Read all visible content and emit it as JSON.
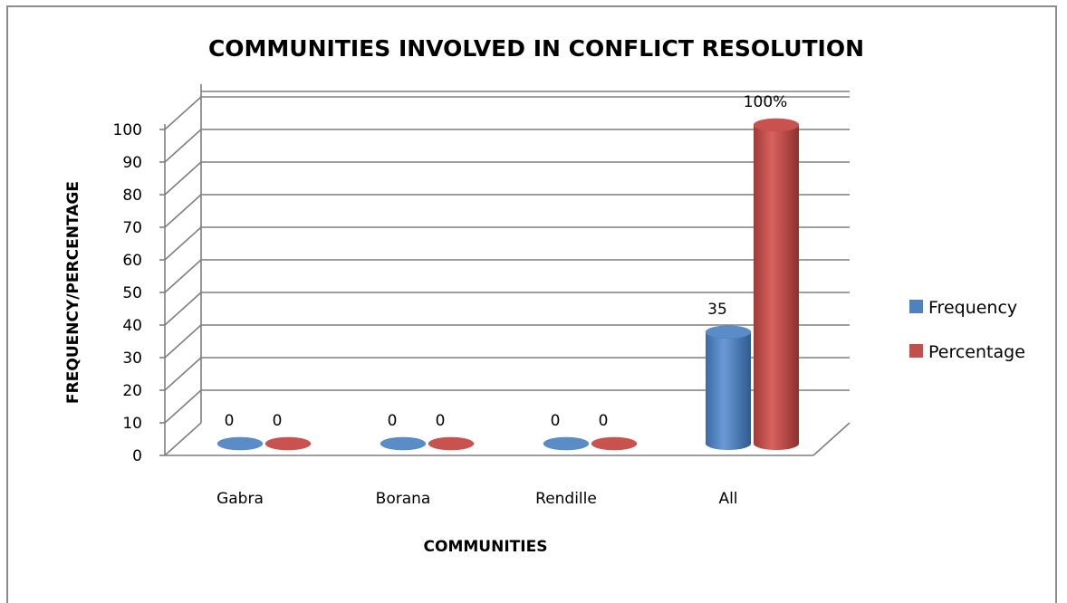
{
  "chart_data": {
    "type": "bar",
    "title": "COMMUNITIES INVOLVED IN CONFLICT RESOLUTION",
    "xlabel": "COMMUNITIES",
    "ylabel": "FREQUENCY/PERCENTAGE",
    "categories": [
      "Gabra",
      "Borana",
      "Rendille",
      "All"
    ],
    "series": [
      {
        "name": "Frequency",
        "values": [
          0,
          0,
          0,
          35
        ],
        "labels": [
          "0",
          "0",
          "0",
          "35"
        ],
        "color": "#4f81bd"
      },
      {
        "name": "Percentage",
        "values": [
          0,
          0,
          0,
          100
        ],
        "labels": [
          "0",
          "0",
          "0",
          "100%"
        ],
        "color": "#c0504d"
      }
    ],
    "ylim": [
      0,
      100
    ],
    "yticks": [
      "0",
      "10",
      "20",
      "30",
      "40",
      "50",
      "60",
      "70",
      "80",
      "90",
      "100"
    ],
    "grid": true,
    "legend_position": "right",
    "style": "3d-cylinder"
  }
}
